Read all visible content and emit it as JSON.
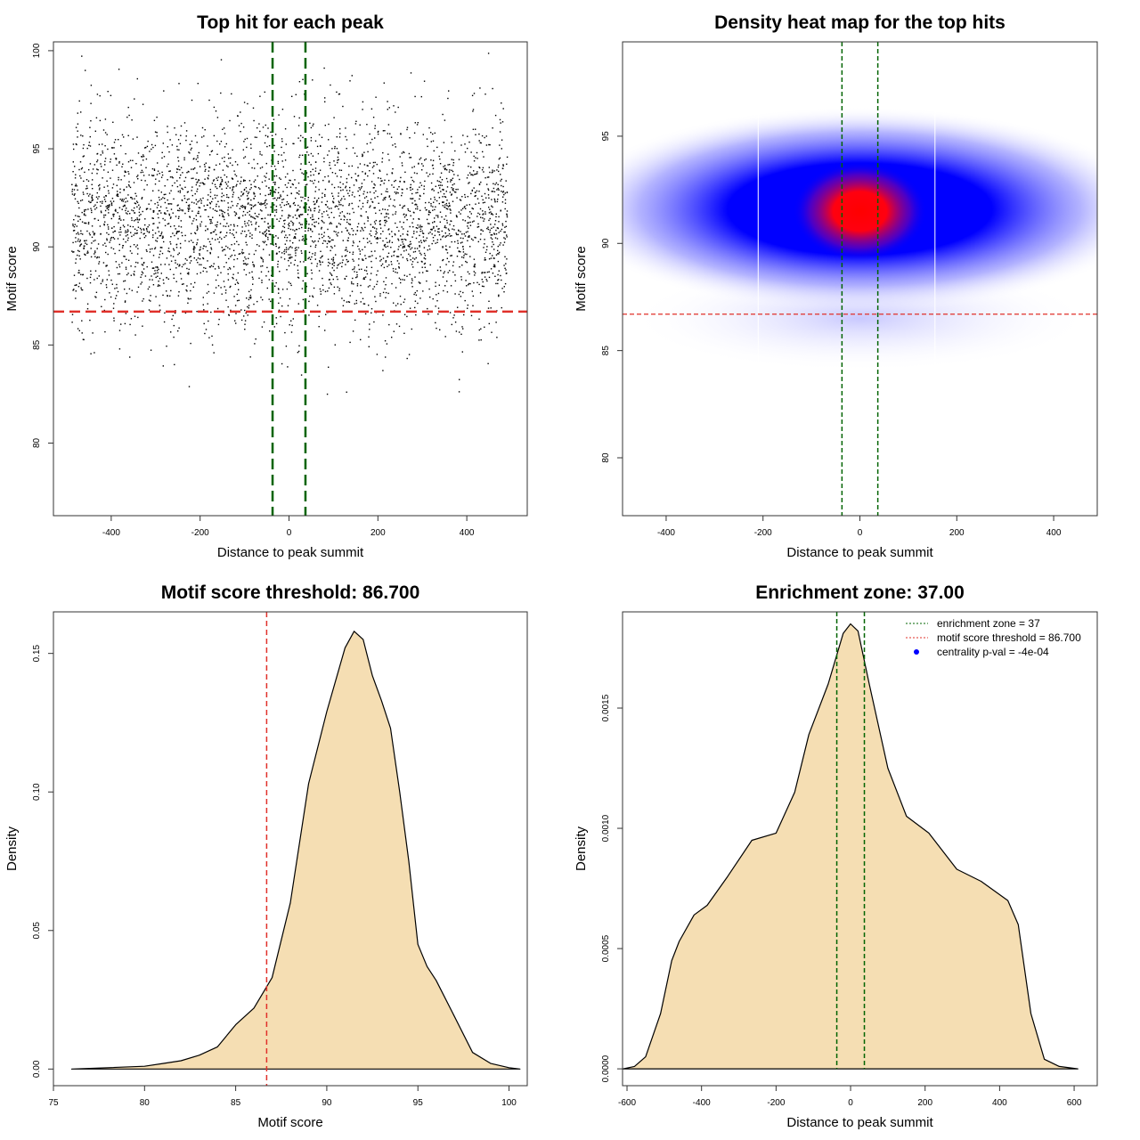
{
  "chart_data": [
    {
      "type": "scatter",
      "title": "Top hit for each peak",
      "xlabel": "Distance to peak summit",
      "ylabel": "Motif score",
      "xlim": [
        -530,
        536
      ],
      "ylim": [
        76.3,
        100.45
      ],
      "xticks": [
        -400,
        -200,
        0,
        200,
        400
      ],
      "yticks": [
        80,
        85,
        90,
        95,
        100
      ],
      "vlines": [
        -37,
        37
      ],
      "hline": 86.7,
      "vline_color": "#006400",
      "hline_color": "#e0302a",
      "point_color": "#000000"
    },
    {
      "type": "heatmap",
      "title": "Density heat map for the top hits",
      "xlabel": "Distance to peak summit",
      "ylabel": "Motif score",
      "xlim": [
        -490,
        490
      ],
      "ylim": [
        77.3,
        99.4
      ],
      "xticks": [
        -400,
        -200,
        0,
        200,
        400
      ],
      "yticks": [
        80,
        85,
        90,
        95
      ],
      "vlines": [
        -37,
        37
      ],
      "hline": 86.7,
      "peak": {
        "x": 0,
        "y": 91.5
      },
      "colors": [
        "#ffffff",
        "#0000ff",
        "#ff0000"
      ]
    },
    {
      "type": "area",
      "title": "Motif score threshold: 86.700",
      "xlabel": "Motif score",
      "ylabel": "Density",
      "xlim": [
        75,
        101
      ],
      "ylim": [
        -0.006,
        0.165
      ],
      "xticks": [
        75,
        80,
        85,
        90,
        95,
        100
      ],
      "yticks": [
        0.0,
        0.05,
        0.1,
        0.15
      ],
      "ytick_labels": [
        "0.00",
        "0.05",
        "0.10",
        "0.15"
      ],
      "vline": 86.7,
      "fill": "#f5deb3",
      "x": [
        76,
        78,
        80,
        81,
        82,
        83,
        84,
        85,
        86,
        87,
        88,
        89,
        90,
        91,
        91.5,
        92,
        92.5,
        93,
        93.5,
        94,
        94.5,
        95,
        95.5,
        96,
        97,
        98,
        99,
        100,
        100.6
      ],
      "y": [
        0,
        0.0005,
        0.001,
        0.002,
        0.003,
        0.005,
        0.008,
        0.016,
        0.022,
        0.033,
        0.06,
        0.103,
        0.129,
        0.152,
        0.158,
        0.155,
        0.142,
        0.133,
        0.123,
        0.1,
        0.075,
        0.045,
        0.037,
        0.032,
        0.019,
        0.006,
        0.002,
        0.0005,
        0
      ]
    },
    {
      "type": "area",
      "title": "Enrichment zone: 37.00",
      "xlabel": "Distance to peak summit",
      "ylabel": "Density",
      "xlim": [
        -612,
        662
      ],
      "ylim": [
        -7e-05,
        0.0019
      ],
      "xticks": [
        -600,
        -400,
        -200,
        0,
        200,
        400,
        600
      ],
      "yticks": [
        0,
        0.0005,
        0.001,
        0.0015
      ],
      "ytick_labels": [
        "0.0000",
        "0.0005",
        "0.0010",
        "0.0015"
      ],
      "vlines": [
        -37,
        37
      ],
      "fill": "#f5deb3",
      "x": [
        -610,
        -580,
        -550,
        -510,
        -480,
        -460,
        -420,
        -385,
        -330,
        -265,
        -200,
        -150,
        -112,
        -60,
        -20,
        0,
        20,
        50,
        100,
        150,
        210,
        285,
        350,
        422,
        450,
        484,
        520,
        560,
        610
      ],
      "y": [
        0,
        1e-05,
        5e-05,
        0.00023,
        0.00045,
        0.00053,
        0.00064,
        0.00068,
        0.0008,
        0.00095,
        0.00098,
        0.00115,
        0.00139,
        0.0016,
        0.00181,
        0.00185,
        0.00182,
        0.0016,
        0.00125,
        0.00105,
        0.00098,
        0.00083,
        0.00078,
        0.0007,
        0.0006,
        0.00023,
        4e-05,
        1e-05,
        0
      ],
      "legend": {
        "position": "top-right",
        "entries": [
          {
            "label": "enrichment zone = 37",
            "color": "#006400",
            "style": "dotted"
          },
          {
            "label": "motif score threshold = 86.700",
            "color": "#e0302a",
            "style": "dotted"
          },
          {
            "label": "centrality p-val = -4e-04",
            "color": "#0000ff",
            "style": "point"
          }
        ]
      }
    }
  ]
}
